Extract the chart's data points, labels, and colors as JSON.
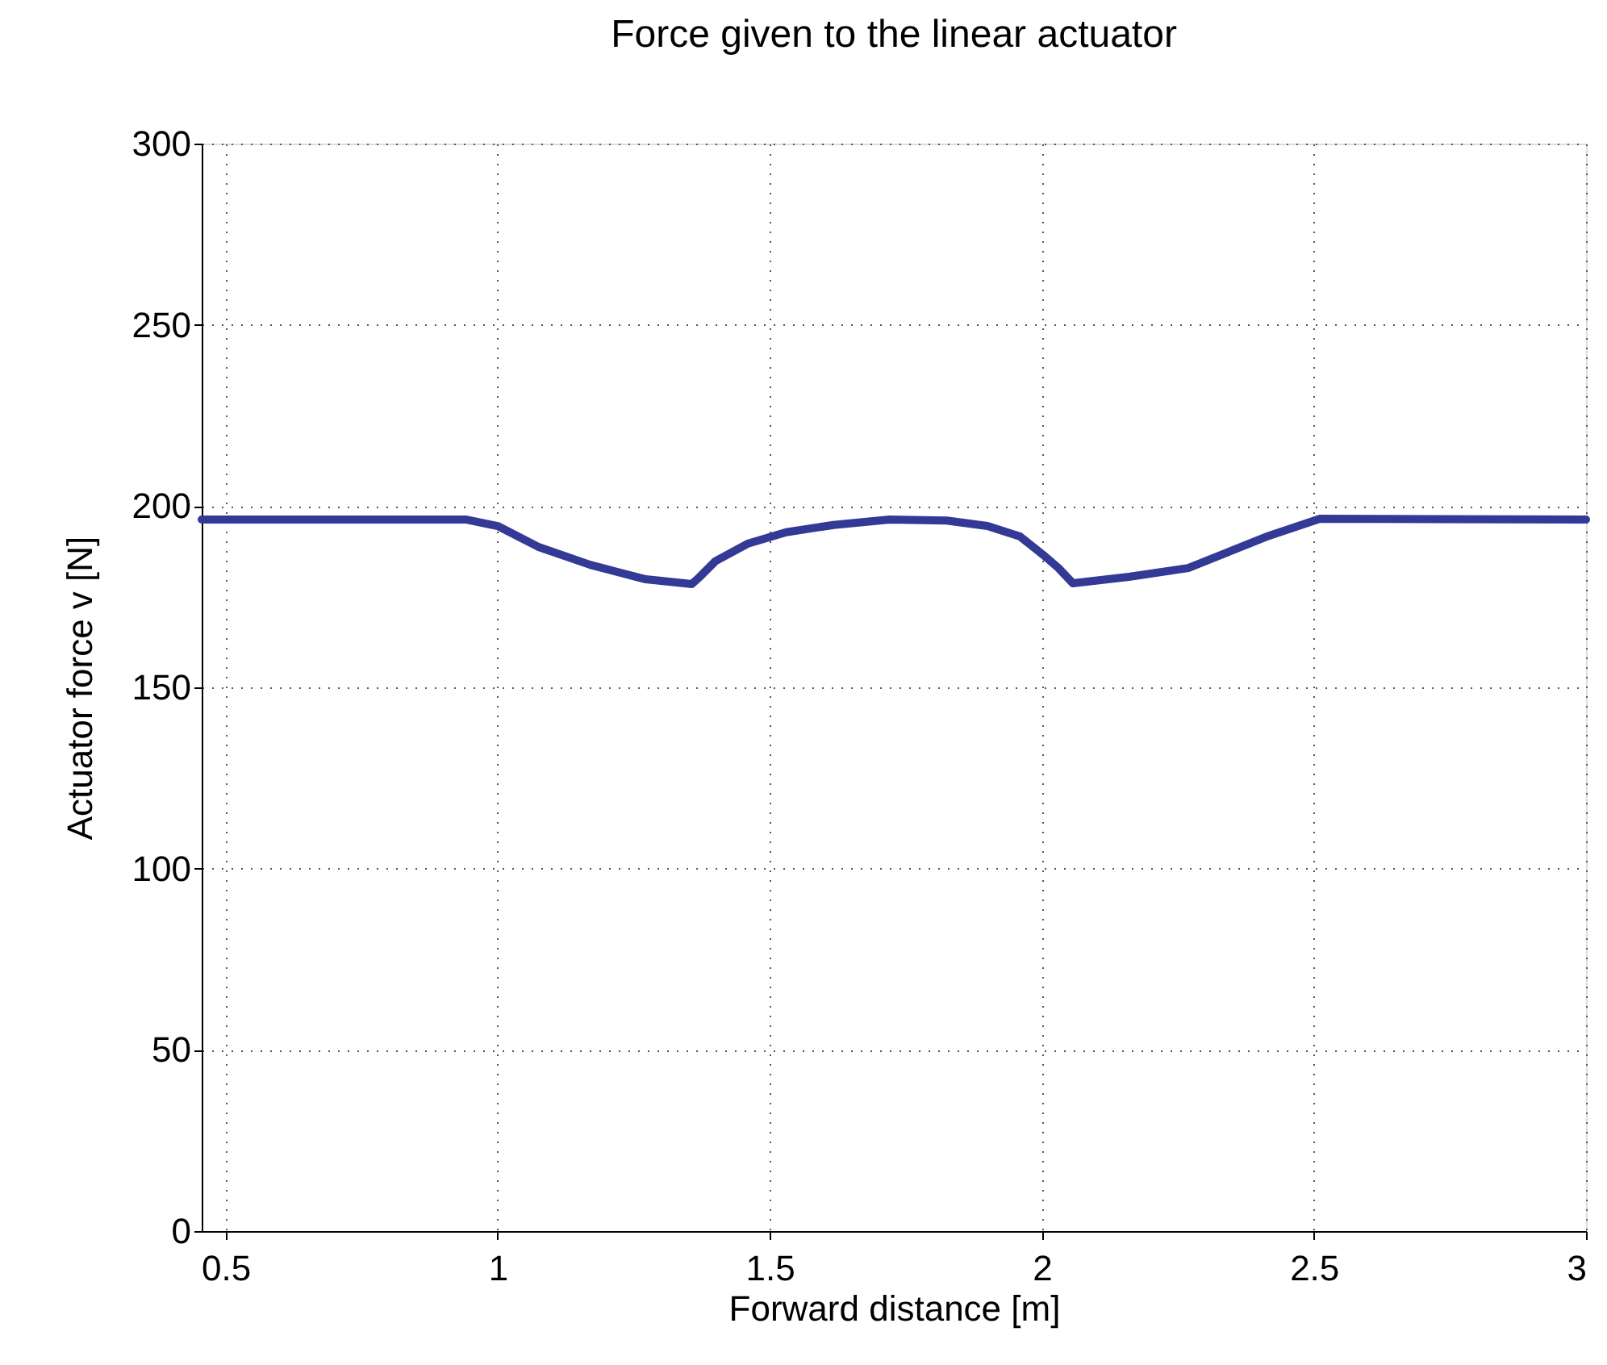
{
  "chart_data": {
    "type": "line",
    "title": "Force given to the linear actuator",
    "xlabel": "Forward distance [m]",
    "ylabel": "Actuator force v [N]",
    "x": [
      0.456,
      0.941,
      1.0,
      1.074,
      1.17,
      1.272,
      1.357,
      1.37,
      1.4,
      1.459,
      1.53,
      1.617,
      1.72,
      1.825,
      1.9,
      1.96,
      2.002,
      2.03,
      2.057,
      2.16,
      2.269,
      2.417,
      2.511,
      3.0
    ],
    "series": [
      {
        "color": "#333a96",
        "values": [
          196.3,
          196.3,
          194.5,
          188.8,
          183.8,
          179.8,
          178.5,
          180.3,
          184.8,
          189.6,
          192.8,
          194.8,
          196.3,
          196.0,
          194.5,
          191.6,
          186.6,
          183.0,
          178.7,
          180.5,
          182.9,
          191.8,
          196.5,
          196.3
        ]
      }
    ],
    "xlim": [
      0.456,
      3
    ],
    "ylim": [
      0,
      300
    ],
    "xticks": [
      {
        "value": 0.5,
        "label": "0.5"
      },
      1,
      1.5,
      2,
      2.5,
      3
    ],
    "yticks": [
      0,
      50,
      100,
      150,
      200,
      250,
      300
    ],
    "grid": true,
    "line_style": "solid",
    "marker": "none"
  }
}
